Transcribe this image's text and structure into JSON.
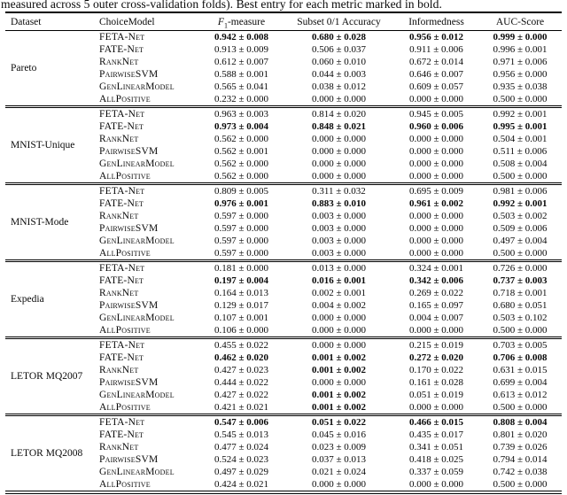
{
  "caption": "measured across 5 outer cross-validation folds). Best entry for each metric marked in bold.",
  "headers": {
    "dataset": "Dataset",
    "model": "ChoiceModel",
    "f1_pre": "F",
    "f1_sub": "1",
    "f1_post": "-measure",
    "subset": "Subset 0/1 Accuracy",
    "informedness": "Informedness",
    "auc": "AUC-Score"
  },
  "groups": [
    {
      "dataset": "Pareto",
      "rows": [
        {
          "model": "FETA-Net",
          "values": [
            {
              "text": "0.942 ± 0.008",
              "bold": true
            },
            {
              "text": "0.680 ± 0.028",
              "bold": true
            },
            {
              "text": "0.956 ± 0.012",
              "bold": true
            },
            {
              "text": "0.999 ± 0.000",
              "bold": true
            }
          ]
        },
        {
          "model": "FATE-Net",
          "values": [
            {
              "text": "0.913 ± 0.009",
              "bold": false
            },
            {
              "text": "0.506 ± 0.037",
              "bold": false
            },
            {
              "text": "0.911 ± 0.006",
              "bold": false
            },
            {
              "text": "0.996 ± 0.001",
              "bold": false
            }
          ]
        },
        {
          "model": "RankNet",
          "values": [
            {
              "text": "0.612 ± 0.007",
              "bold": false
            },
            {
              "text": "0.060 ± 0.010",
              "bold": false
            },
            {
              "text": "0.672 ± 0.014",
              "bold": false
            },
            {
              "text": "0.971 ± 0.006",
              "bold": false
            }
          ]
        },
        {
          "model": "PairwiseSVM",
          "values": [
            {
              "text": "0.588 ± 0.001",
              "bold": false
            },
            {
              "text": "0.044 ± 0.003",
              "bold": false
            },
            {
              "text": "0.646 ± 0.007",
              "bold": false
            },
            {
              "text": "0.956 ± 0.000",
              "bold": false
            }
          ]
        },
        {
          "model": "GenLinearModel",
          "values": [
            {
              "text": "0.565 ± 0.041",
              "bold": false
            },
            {
              "text": "0.038 ± 0.012",
              "bold": false
            },
            {
              "text": "0.609 ± 0.057",
              "bold": false
            },
            {
              "text": "0.935 ± 0.038",
              "bold": false
            }
          ]
        },
        {
          "model": "AllPositive",
          "values": [
            {
              "text": "0.232 ± 0.000",
              "bold": false
            },
            {
              "text": "0.000 ± 0.000",
              "bold": false
            },
            {
              "text": "0.000 ± 0.000",
              "bold": false
            },
            {
              "text": "0.500 ± 0.000",
              "bold": false
            }
          ]
        }
      ]
    },
    {
      "dataset": "MNIST-Unique",
      "rows": [
        {
          "model": "FETA-Net",
          "values": [
            {
              "text": "0.963 ± 0.003",
              "bold": false
            },
            {
              "text": "0.814 ± 0.020",
              "bold": false
            },
            {
              "text": "0.945 ± 0.005",
              "bold": false
            },
            {
              "text": "0.992 ± 0.001",
              "bold": false
            }
          ]
        },
        {
          "model": "FATE-Net",
          "values": [
            {
              "text": "0.973 ± 0.004",
              "bold": true
            },
            {
              "text": "0.848 ± 0.021",
              "bold": true
            },
            {
              "text": "0.960 ± 0.006",
              "bold": true
            },
            {
              "text": "0.995 ± 0.001",
              "bold": true
            }
          ]
        },
        {
          "model": "RankNet",
          "values": [
            {
              "text": "0.562 ± 0.000",
              "bold": false
            },
            {
              "text": "0.000 ± 0.000",
              "bold": false
            },
            {
              "text": "0.000 ± 0.000",
              "bold": false
            },
            {
              "text": "0.504 ± 0.001",
              "bold": false
            }
          ]
        },
        {
          "model": "PairwiseSVM",
          "values": [
            {
              "text": "0.562 ± 0.001",
              "bold": false
            },
            {
              "text": "0.000 ± 0.000",
              "bold": false
            },
            {
              "text": "0.000 ± 0.000",
              "bold": false
            },
            {
              "text": "0.511 ± 0.006",
              "bold": false
            }
          ]
        },
        {
          "model": "GenLinearModel",
          "values": [
            {
              "text": "0.562 ± 0.000",
              "bold": false
            },
            {
              "text": "0.000 ± 0.000",
              "bold": false
            },
            {
              "text": "0.000 ± 0.000",
              "bold": false
            },
            {
              "text": "0.508 ± 0.004",
              "bold": false
            }
          ]
        },
        {
          "model": "AllPositive",
          "values": [
            {
              "text": "0.562 ± 0.000",
              "bold": false
            },
            {
              "text": "0.000 ± 0.000",
              "bold": false
            },
            {
              "text": "0.000 ± 0.000",
              "bold": false
            },
            {
              "text": "0.500 ± 0.000",
              "bold": false
            }
          ]
        }
      ]
    },
    {
      "dataset": "MNIST-Mode",
      "rows": [
        {
          "model": "FETA-Net",
          "values": [
            {
              "text": "0.809 ± 0.005",
              "bold": false
            },
            {
              "text": "0.311 ± 0.032",
              "bold": false
            },
            {
              "text": "0.695 ± 0.009",
              "bold": false
            },
            {
              "text": "0.981 ± 0.006",
              "bold": false
            }
          ]
        },
        {
          "model": "FATE-Net",
          "values": [
            {
              "text": "0.976 ± 0.001",
              "bold": true
            },
            {
              "text": "0.883 ± 0.010",
              "bold": true
            },
            {
              "text": "0.961 ± 0.002",
              "bold": true
            },
            {
              "text": "0.992 ± 0.001",
              "bold": true
            }
          ]
        },
        {
          "model": "RankNet",
          "values": [
            {
              "text": "0.597 ± 0.000",
              "bold": false
            },
            {
              "text": "0.003 ± 0.000",
              "bold": false
            },
            {
              "text": "0.000 ± 0.000",
              "bold": false
            },
            {
              "text": "0.503 ± 0.002",
              "bold": false
            }
          ]
        },
        {
          "model": "PairwiseSVM",
          "values": [
            {
              "text": "0.597 ± 0.000",
              "bold": false
            },
            {
              "text": "0.003 ± 0.000",
              "bold": false
            },
            {
              "text": "0.000 ± 0.000",
              "bold": false
            },
            {
              "text": "0.509 ± 0.006",
              "bold": false
            }
          ]
        },
        {
          "model": "GenLinearModel",
          "values": [
            {
              "text": "0.597 ± 0.000",
              "bold": false
            },
            {
              "text": "0.003 ± 0.000",
              "bold": false
            },
            {
              "text": "0.000 ± 0.000",
              "bold": false
            },
            {
              "text": "0.497 ± 0.004",
              "bold": false
            }
          ]
        },
        {
          "model": "AllPositive",
          "values": [
            {
              "text": "0.597 ± 0.000",
              "bold": false
            },
            {
              "text": "0.003 ± 0.000",
              "bold": false
            },
            {
              "text": "0.000 ± 0.000",
              "bold": false
            },
            {
              "text": "0.500 ± 0.000",
              "bold": false
            }
          ]
        }
      ]
    },
    {
      "dataset": "Expedia",
      "rows": [
        {
          "model": "FETA-Net",
          "values": [
            {
              "text": "0.181 ± 0.000",
              "bold": false
            },
            {
              "text": "0.013 ± 0.000",
              "bold": false
            },
            {
              "text": "0.324 ± 0.001",
              "bold": false
            },
            {
              "text": "0.726 ± 0.000",
              "bold": false
            }
          ]
        },
        {
          "model": "FATE-Net",
          "values": [
            {
              "text": "0.197 ± 0.004",
              "bold": true
            },
            {
              "text": "0.016 ± 0.001",
              "bold": true
            },
            {
              "text": "0.342 ± 0.006",
              "bold": true
            },
            {
              "text": "0.737 ± 0.003",
              "bold": true
            }
          ]
        },
        {
          "model": "RankNet",
          "values": [
            {
              "text": "0.164 ± 0.013",
              "bold": false
            },
            {
              "text": "0.002 ± 0.001",
              "bold": false
            },
            {
              "text": "0.269 ± 0.022",
              "bold": false
            },
            {
              "text": "0.718 ± 0.001",
              "bold": false
            }
          ]
        },
        {
          "model": "PairwiseSVM",
          "values": [
            {
              "text": "0.129 ± 0.017",
              "bold": false
            },
            {
              "text": "0.004 ± 0.002",
              "bold": false
            },
            {
              "text": "0.165 ± 0.097",
              "bold": false
            },
            {
              "text": "0.680 ± 0.051",
              "bold": false
            }
          ]
        },
        {
          "model": "GenLinearModel",
          "values": [
            {
              "text": "0.107 ± 0.001",
              "bold": false
            },
            {
              "text": "0.000 ± 0.000",
              "bold": false
            },
            {
              "text": "0.004 ± 0.007",
              "bold": false
            },
            {
              "text": "0.503 ± 0.102",
              "bold": false
            }
          ]
        },
        {
          "model": "AllPositive",
          "values": [
            {
              "text": "0.106 ± 0.000",
              "bold": false
            },
            {
              "text": "0.000 ± 0.000",
              "bold": false
            },
            {
              "text": "0.000 ± 0.000",
              "bold": false
            },
            {
              "text": "0.500 ± 0.000",
              "bold": false
            }
          ]
        }
      ]
    },
    {
      "dataset": "LETOR MQ2007",
      "rows": [
        {
          "model": "FETA-Net",
          "values": [
            {
              "text": "0.455 ± 0.022",
              "bold": false
            },
            {
              "text": "0.000 ± 0.000",
              "bold": false
            },
            {
              "text": "0.215 ± 0.019",
              "bold": false
            },
            {
              "text": "0.703 ± 0.005",
              "bold": false
            }
          ]
        },
        {
          "model": "FATE-Net",
          "values": [
            {
              "text": "0.462 ± 0.020",
              "bold": true
            },
            {
              "text": "0.001 ± 0.002",
              "bold": true
            },
            {
              "text": "0.272 ± 0.020",
              "bold": true
            },
            {
              "text": "0.706 ± 0.008",
              "bold": true
            }
          ]
        },
        {
          "model": "RankNet",
          "values": [
            {
              "text": "0.427 ± 0.023",
              "bold": false
            },
            {
              "text": "0.001 ± 0.002",
              "bold": true
            },
            {
              "text": "0.170 ± 0.022",
              "bold": false
            },
            {
              "text": "0.631 ± 0.015",
              "bold": false
            }
          ]
        },
        {
          "model": "PairwiseSVM",
          "values": [
            {
              "text": "0.444 ± 0.022",
              "bold": false
            },
            {
              "text": "0.000 ± 0.000",
              "bold": false
            },
            {
              "text": "0.161 ± 0.028",
              "bold": false
            },
            {
              "text": "0.699 ± 0.004",
              "bold": false
            }
          ]
        },
        {
          "model": "GenLinearModel",
          "values": [
            {
              "text": "0.427 ± 0.022",
              "bold": false
            },
            {
              "text": "0.001 ± 0.002",
              "bold": true
            },
            {
              "text": "0.051 ± 0.019",
              "bold": false
            },
            {
              "text": "0.613 ± 0.012",
              "bold": false
            }
          ]
        },
        {
          "model": "AllPositive",
          "values": [
            {
              "text": "0.421 ± 0.021",
              "bold": false
            },
            {
              "text": "0.001 ± 0.002",
              "bold": true
            },
            {
              "text": "0.000 ± 0.000",
              "bold": false
            },
            {
              "text": "0.500 ± 0.000",
              "bold": false
            }
          ]
        }
      ]
    },
    {
      "dataset": "LETOR MQ2008",
      "rows": [
        {
          "model": "FETA-Net",
          "values": [
            {
              "text": "0.547 ± 0.006",
              "bold": true
            },
            {
              "text": "0.051 ± 0.022",
              "bold": true
            },
            {
              "text": "0.466 ± 0.015",
              "bold": true
            },
            {
              "text": "0.808 ± 0.004",
              "bold": true
            }
          ]
        },
        {
          "model": "FATE-Net",
          "values": [
            {
              "text": "0.545 ± 0.013",
              "bold": false
            },
            {
              "text": "0.045 ± 0.016",
              "bold": false
            },
            {
              "text": "0.435 ± 0.017",
              "bold": false
            },
            {
              "text": "0.801 ± 0.020",
              "bold": false
            }
          ]
        },
        {
          "model": "RankNet",
          "values": [
            {
              "text": "0.477 ± 0.024",
              "bold": false
            },
            {
              "text": "0.023 ± 0.009",
              "bold": false
            },
            {
              "text": "0.341 ± 0.051",
              "bold": false
            },
            {
              "text": "0.739 ± 0.026",
              "bold": false
            }
          ]
        },
        {
          "model": "PairwiseSVM",
          "values": [
            {
              "text": "0.524 ± 0.023",
              "bold": false
            },
            {
              "text": "0.037 ± 0.013",
              "bold": false
            },
            {
              "text": "0.418 ± 0.025",
              "bold": false
            },
            {
              "text": "0.794 ± 0.014",
              "bold": false
            }
          ]
        },
        {
          "model": "GenLinearModel",
          "values": [
            {
              "text": "0.497 ± 0.029",
              "bold": false
            },
            {
              "text": "0.021 ± 0.024",
              "bold": false
            },
            {
              "text": "0.337 ± 0.059",
              "bold": false
            },
            {
              "text": "0.742 ± 0.038",
              "bold": false
            }
          ]
        },
        {
          "model": "AllPositive",
          "values": [
            {
              "text": "0.424 ± 0.021",
              "bold": false
            },
            {
              "text": "0.000 ± 0.000",
              "bold": false
            },
            {
              "text": "0.000 ± 0.000",
              "bold": false
            },
            {
              "text": "0.500 ± 0.000",
              "bold": false
            }
          ]
        }
      ]
    }
  ]
}
